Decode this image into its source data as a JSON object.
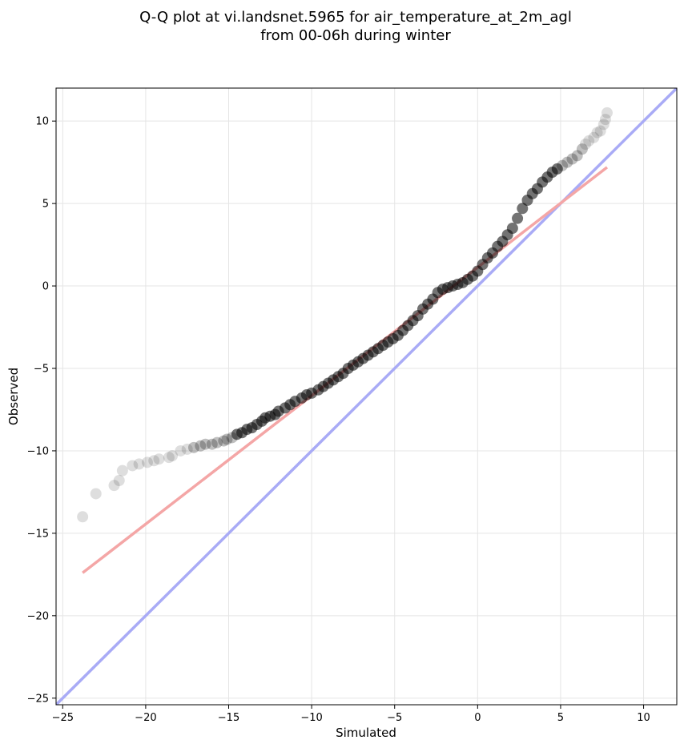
{
  "chart_data": {
    "type": "scatter",
    "title_line1": "Q-Q plot at vi.landsnet.5965 for air_temperature_at_2m_agl",
    "title_line2": "from 00-06h during winter",
    "xlabel": "Simulated",
    "ylabel": "Observed",
    "xlim": [
      -25.4,
      12.0
    ],
    "ylim": [
      -25.4,
      12.0
    ],
    "xticks": [
      -25,
      -20,
      -15,
      -10,
      -5,
      0,
      5,
      10
    ],
    "xtick_labels": [
      "−25",
      "−20",
      "−15",
      "−10",
      "−5",
      "0",
      "5",
      "10"
    ],
    "yticks": [
      -25,
      -20,
      -15,
      -10,
      -5,
      0,
      5,
      10
    ],
    "ytick_labels": [
      "−25",
      "−20",
      "−15",
      "−10",
      "−5",
      "0",
      "5",
      "10"
    ],
    "grid": true,
    "colors": {
      "points": "#000000",
      "fit_line": "#f4a6a6",
      "identity_line": "#a9abf6",
      "grid": "#e5e5e5",
      "frame": "#000000"
    },
    "quantiles": {
      "x": [
        -23.8,
        -23.0,
        -21.9,
        -21.6,
        -21.4,
        -20.8,
        -20.4,
        -19.9,
        -19.5,
        -19.2,
        -18.6,
        -18.4,
        -17.9,
        -17.5,
        -17.1,
        -16.7,
        -16.4,
        -16.0,
        -15.7,
        -15.3,
        -15.1,
        -14.8,
        -14.5,
        -14.2,
        -13.9,
        -13.6,
        -13.3,
        -13.0,
        -12.8,
        -12.5,
        -12.2,
        -12.0,
        -11.6,
        -11.3,
        -11.0,
        -10.6,
        -10.3,
        -10.0,
        -9.6,
        -9.3,
        -9.0,
        -8.7,
        -8.4,
        -8.1,
        -7.8,
        -7.5,
        -7.2,
        -6.9,
        -6.6,
        -6.3,
        -6.0,
        -5.7,
        -5.4,
        -5.1,
        -4.8,
        -4.5,
        -4.2,
        -3.9,
        -3.6,
        -3.3,
        -3.0,
        -2.7,
        -2.4,
        -2.1,
        -1.8,
        -1.5,
        -1.2,
        -0.9,
        -0.6,
        -0.3,
        0.0,
        0.3,
        0.6,
        0.9,
        1.2,
        1.5,
        1.8,
        2.1,
        2.4,
        2.7,
        3.0,
        3.3,
        3.6,
        3.9,
        4.2,
        4.5,
        4.8,
        5.1,
        5.4,
        5.7,
        6.0,
        6.3,
        6.5,
        6.7,
        7.0,
        7.2,
        7.4,
        7.6,
        7.7,
        7.8
      ],
      "y": [
        -14.0,
        -12.6,
        -12.1,
        -11.8,
        -11.2,
        -10.9,
        -10.8,
        -10.7,
        -10.6,
        -10.5,
        -10.4,
        -10.3,
        -10.0,
        -9.9,
        -9.8,
        -9.7,
        -9.6,
        -9.6,
        -9.5,
        -9.4,
        -9.3,
        -9.2,
        -9.0,
        -8.9,
        -8.7,
        -8.6,
        -8.4,
        -8.2,
        -8.0,
        -7.9,
        -7.8,
        -7.6,
        -7.4,
        -7.2,
        -7.0,
        -6.8,
        -6.6,
        -6.5,
        -6.3,
        -6.1,
        -5.9,
        -5.7,
        -5.5,
        -5.3,
        -5.0,
        -4.8,
        -4.6,
        -4.4,
        -4.2,
        -4.0,
        -3.8,
        -3.6,
        -3.4,
        -3.2,
        -3.0,
        -2.7,
        -2.4,
        -2.1,
        -1.8,
        -1.4,
        -1.1,
        -0.8,
        -0.4,
        -0.2,
        -0.1,
        0.0,
        0.1,
        0.2,
        0.4,
        0.6,
        0.9,
        1.3,
        1.7,
        2.0,
        2.4,
        2.7,
        3.1,
        3.5,
        4.1,
        4.7,
        5.2,
        5.6,
        5.9,
        6.3,
        6.6,
        6.9,
        7.1,
        7.3,
        7.5,
        7.7,
        7.9,
        8.3,
        8.6,
        8.8,
        9.0,
        9.3,
        9.4,
        9.8,
        10.1,
        10.5
      ]
    },
    "fit_line": {
      "x": [
        -23.8,
        7.8
      ],
      "y": [
        -17.4,
        7.2
      ]
    },
    "identity_line": {
      "x": [
        -25.4,
        12.0
      ],
      "y": [
        -25.4,
        12.0
      ]
    }
  }
}
